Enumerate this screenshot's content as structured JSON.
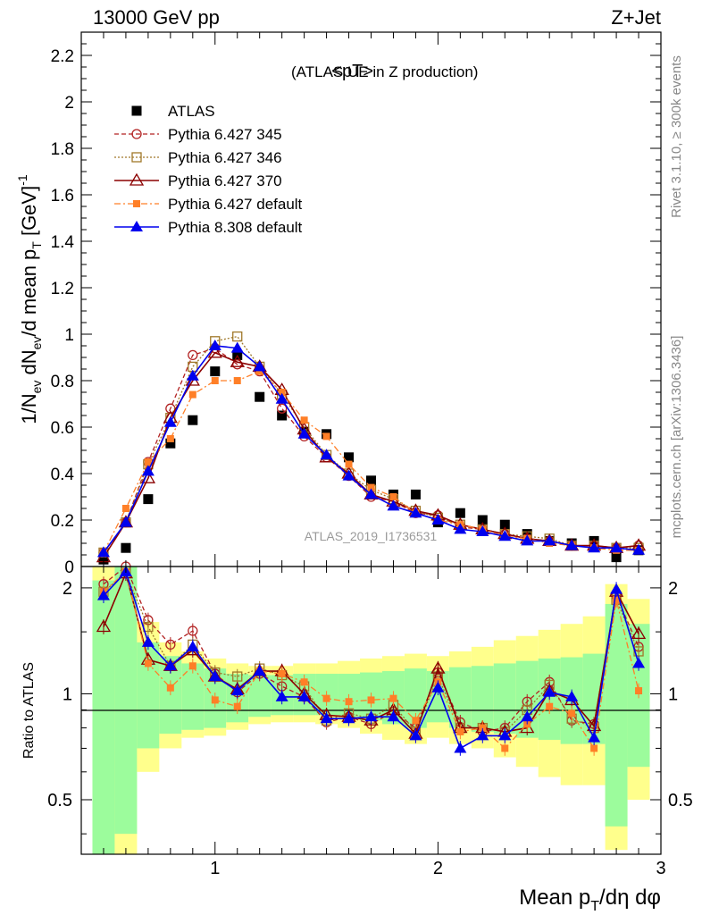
{
  "header": {
    "left": "13000 GeV pp",
    "right": "Z+Jet"
  },
  "side_labels": {
    "rivet": "Rivet 3.1.10, ≥ 300k events",
    "mcplots": "mcplots.cern.ch [arXiv:1306.3436]"
  },
  "watermark": "ATLAS_2019_I1736531",
  "chart_data": [
    {
      "type": "line",
      "panel": "main",
      "title": "<pT>",
      "subtitle": "(ATLAS UE in Z production)",
      "xlabel": "Mean pT/dη dφ",
      "ylabel": "1/Nev dNev/d mean pT [GeV]^-1",
      "xlim": [
        0.4,
        3.0
      ],
      "ylim": [
        0,
        2.3
      ],
      "yticks": [
        "0",
        "0.2",
        "0.4",
        "0.6",
        "0.8",
        "1",
        "1.2",
        "1.4",
        "1.6",
        "1.8",
        "2",
        "2.2"
      ],
      "grid": false,
      "legend": "top-left",
      "x": [
        0.5,
        0.6,
        0.7,
        0.8,
        0.9,
        1.0,
        1.1,
        1.2,
        1.3,
        1.4,
        1.5,
        1.6,
        1.7,
        1.8,
        1.9,
        2.0,
        2.1,
        2.2,
        2.3,
        2.4,
        2.5,
        2.6,
        2.7,
        2.8,
        2.9
      ],
      "series": [
        {
          "name": "ATLAS",
          "color": "#000000",
          "values": [
            0.03,
            0.08,
            0.29,
            0.53,
            0.63,
            0.84,
            0.91,
            0.73,
            0.65,
            0.58,
            0.57,
            0.47,
            0.37,
            0.31,
            0.31,
            0.19,
            0.23,
            0.2,
            0.18,
            0.14,
            0.11,
            0.1,
            0.11,
            0.04,
            0.07
          ]
        },
        {
          "name": "Pythia 6.427 345",
          "color": "#b22222",
          "values": [
            0.06,
            0.19,
            0.45,
            0.68,
            0.91,
            0.94,
            0.87,
            0.84,
            0.68,
            0.56,
            0.47,
            0.39,
            0.3,
            0.28,
            0.23,
            0.22,
            0.17,
            0.16,
            0.14,
            0.12,
            0.11,
            0.09,
            0.09,
            0.08,
            0.09
          ]
        },
        {
          "name": "Pythia 6.427 346",
          "color": "#a0782a",
          "values": [
            0.06,
            0.19,
            0.44,
            0.64,
            0.86,
            0.97,
            0.99,
            0.86,
            0.74,
            0.6,
            0.48,
            0.4,
            0.33,
            0.29,
            0.24,
            0.21,
            0.18,
            0.16,
            0.14,
            0.13,
            0.12,
            0.09,
            0.09,
            0.08,
            0.08
          ]
        },
        {
          "name": "Pythia 6.427 370",
          "color": "#8b0000",
          "values": [
            0.04,
            0.19,
            0.38,
            0.64,
            0.8,
            0.92,
            0.88,
            0.86,
            0.76,
            0.59,
            0.47,
            0.4,
            0.31,
            0.28,
            0.24,
            0.22,
            0.18,
            0.16,
            0.14,
            0.12,
            0.11,
            0.09,
            0.09,
            0.08,
            0.09
          ]
        },
        {
          "name": "Pythia 6.427 default",
          "color": "#ff7f27",
          "values": [
            0.06,
            0.25,
            0.45,
            0.55,
            0.74,
            0.8,
            0.8,
            0.84,
            0.75,
            0.63,
            0.56,
            0.44,
            0.34,
            0.3,
            0.23,
            0.2,
            0.18,
            0.16,
            0.13,
            0.12,
            0.1,
            0.09,
            0.08,
            0.07,
            0.07
          ]
        },
        {
          "name": "Pythia 8.308 default",
          "color": "#0000ee",
          "values": [
            0.06,
            0.19,
            0.41,
            0.62,
            0.82,
            0.95,
            0.94,
            0.86,
            0.72,
            0.57,
            0.48,
            0.39,
            0.31,
            0.26,
            0.23,
            0.2,
            0.16,
            0.15,
            0.13,
            0.11,
            0.11,
            0.09,
            0.08,
            0.08,
            0.07
          ]
        }
      ]
    },
    {
      "type": "line",
      "panel": "ratio",
      "ylabel": "Ratio to ATLAS",
      "xlabel": "Mean pT/dη dφ",
      "xlim": [
        0.4,
        3.0
      ],
      "ylim": [
        0.35,
        2.3
      ],
      "log_y": true,
      "xticks": [
        "1",
        "2",
        "3"
      ],
      "yticks": [
        "0.5",
        "1",
        "2"
      ],
      "x": [
        0.5,
        0.6,
        0.7,
        0.8,
        0.9,
        1.0,
        1.1,
        1.2,
        1.3,
        1.4,
        1.5,
        1.6,
        1.7,
        1.8,
        1.9,
        2.0,
        2.1,
        2.2,
        2.3,
        2.4,
        2.5,
        2.6,
        2.7,
        2.8,
        2.9
      ],
      "bands": {
        "bin_edges": [
          0.45,
          0.55,
          0.65,
          0.75,
          0.85,
          0.95,
          1.05,
          1.15,
          1.25,
          1.35,
          1.45,
          1.55,
          1.65,
          1.75,
          1.85,
          1.95,
          2.05,
          2.15,
          2.25,
          2.35,
          2.45,
          2.55,
          2.65,
          2.75,
          2.85,
          2.95
        ],
        "green_lo": [
          0.33,
          0.4,
          0.7,
          0.77,
          0.79,
          0.8,
          0.83,
          0.86,
          0.87,
          0.87,
          0.87,
          0.86,
          0.84,
          0.82,
          0.8,
          0.83,
          0.8,
          0.78,
          0.77,
          0.75,
          0.74,
          0.72,
          0.72,
          0.42,
          0.62
        ],
        "green_hi": [
          2.1,
          2.3,
          1.4,
          1.28,
          1.22,
          1.18,
          1.14,
          1.13,
          1.13,
          1.14,
          1.14,
          1.14,
          1.15,
          1.16,
          1.18,
          1.16,
          1.19,
          1.2,
          1.22,
          1.24,
          1.26,
          1.27,
          1.3,
          1.8,
          1.58
        ],
        "yellow_lo": [
          0.3,
          0.33,
          0.6,
          0.7,
          0.75,
          0.76,
          0.79,
          0.82,
          0.83,
          0.83,
          0.82,
          0.8,
          0.77,
          0.74,
          0.72,
          0.75,
          0.72,
          0.7,
          0.66,
          0.62,
          0.58,
          0.55,
          0.55,
          0.36,
          0.5
        ],
        "yellow_hi": [
          2.3,
          2.3,
          1.6,
          1.4,
          1.32,
          1.26,
          1.22,
          1.2,
          1.2,
          1.22,
          1.22,
          1.24,
          1.26,
          1.28,
          1.3,
          1.28,
          1.32,
          1.36,
          1.42,
          1.46,
          1.52,
          1.58,
          1.66,
          2.05,
          1.86
        ]
      },
      "series": [
        {
          "name": "Pythia 6.427 345",
          "values": [
            2.05,
            2.32,
            1.62,
            1.38,
            1.51,
            1.14,
            1.01,
            1.14,
            1.05,
            0.98,
            0.83,
            0.86,
            0.82,
            0.89,
            0.8,
            1.15,
            0.83,
            0.78,
            0.8,
            0.95,
            1.08,
            0.84,
            0.82,
            1.9,
            1.36
          ]
        },
        {
          "name": "Pythia 6.427 346",
          "values": [
            1.95,
            2.2,
            1.55,
            1.2,
            1.38,
            1.15,
            1.12,
            1.18,
            1.13,
            1.05,
            0.84,
            0.88,
            0.85,
            0.93,
            0.78,
            1.12,
            0.8,
            0.8,
            0.78,
            0.9,
            1.06,
            0.85,
            0.8,
            1.85,
            1.32
          ]
        },
        {
          "name": "Pythia 6.427 370",
          "values": [
            1.55,
            2.2,
            1.25,
            1.2,
            1.33,
            1.12,
            1.03,
            1.16,
            1.16,
            1.0,
            0.87,
            0.86,
            0.84,
            0.9,
            0.77,
            1.18,
            0.8,
            0.8,
            0.78,
            0.8,
            1.02,
            0.96,
            0.81,
            1.95,
            1.48
          ]
        },
        {
          "name": "Pythia 6.427 default",
          "values": [
            1.95,
            2.22,
            1.22,
            1.04,
            1.2,
            0.96,
            0.92,
            1.16,
            1.14,
            1.08,
            0.97,
            0.95,
            0.96,
            0.97,
            0.84,
            1.08,
            0.78,
            0.8,
            0.7,
            0.82,
            0.92,
            0.88,
            0.7,
            1.85,
            1.02
          ]
        },
        {
          "name": "Pythia 8.308 default",
          "values": [
            1.9,
            2.22,
            1.4,
            1.2,
            1.36,
            1.12,
            1.02,
            1.16,
            0.98,
            0.98,
            0.85,
            0.85,
            0.86,
            0.86,
            0.76,
            1.04,
            0.7,
            0.76,
            0.76,
            0.86,
            1.01,
            0.98,
            0.75,
            1.98,
            1.22
          ]
        }
      ]
    }
  ]
}
